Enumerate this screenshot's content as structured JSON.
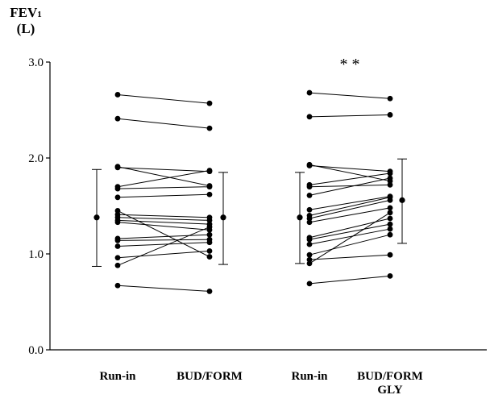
{
  "chart_data": {
    "type": "scatter",
    "ylabel_line1": "FEV",
    "ylabel_sub": "1",
    "ylabel_line2": "(L)",
    "ylim": [
      0,
      3
    ],
    "yticks": [
      "0.0",
      "1.0",
      "2.0",
      "3.0"
    ],
    "ytick_values": [
      0,
      1,
      2,
      3
    ],
    "categories": [
      "Run-in",
      "BUD/FORM",
      "Run-in",
      "BUD/FORM GLY"
    ],
    "category_lines": [
      [
        "Run-in"
      ],
      [
        "BUD/FORM"
      ],
      [
        "Run-in"
      ],
      [
        "BUD/FORM",
        "GLY"
      ]
    ],
    "annotation": "* *",
    "groups": [
      {
        "pairs": [
          [
            2.66,
            2.57
          ],
          [
            2.41,
            2.31
          ],
          [
            1.91,
            1.71
          ],
          [
            1.9,
            1.86
          ],
          [
            1.7,
            1.87
          ],
          [
            1.68,
            1.7
          ],
          [
            1.59,
            1.62
          ],
          [
            1.45,
            0.97
          ],
          [
            1.41,
            1.38
          ],
          [
            1.38,
            1.35
          ],
          [
            1.35,
            1.31
          ],
          [
            1.33,
            1.25
          ],
          [
            1.16,
            1.2
          ],
          [
            1.14,
            1.15
          ],
          [
            1.08,
            1.12
          ],
          [
            0.96,
            1.03
          ],
          [
            0.88,
            1.28
          ],
          [
            0.67,
            0.61
          ]
        ],
        "mean": [
          1.38,
          1.38
        ],
        "sd_low": [
          0.87,
          0.89
        ],
        "sd_high": [
          1.88,
          1.85
        ]
      },
      {
        "pairs": [
          [
            2.68,
            2.62
          ],
          [
            2.43,
            2.45
          ],
          [
            1.93,
            1.76
          ],
          [
            1.92,
            1.86
          ],
          [
            1.72,
            1.84
          ],
          [
            1.7,
            1.72
          ],
          [
            1.61,
            1.79
          ],
          [
            1.46,
            1.6
          ],
          [
            1.4,
            1.59
          ],
          [
            1.37,
            1.56
          ],
          [
            1.33,
            1.48
          ],
          [
            1.17,
            1.37
          ],
          [
            1.15,
            1.31
          ],
          [
            1.1,
            1.26
          ],
          [
            0.99,
            1.2
          ],
          [
            0.94,
            0.99
          ],
          [
            0.9,
            1.43
          ],
          [
            0.69,
            0.77
          ]
        ],
        "mean": [
          1.38,
          1.56
        ],
        "sd_low": [
          0.9,
          1.11
        ],
        "sd_high": [
          1.85,
          1.99
        ]
      }
    ]
  }
}
